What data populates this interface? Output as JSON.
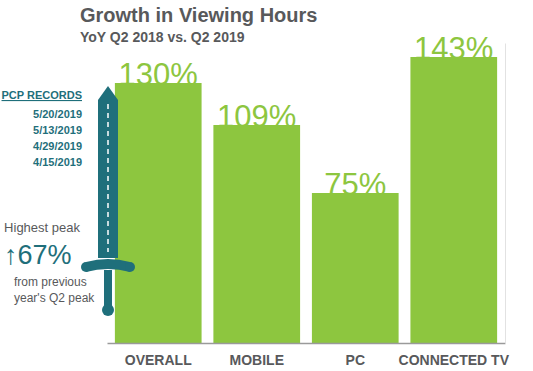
{
  "chart_data": {
    "type": "bar",
    "title": "Growth in Viewing Hours",
    "subtitle": "YoY Q2 2018 vs. Q2 2019",
    "categories": [
      "OVERALL",
      "MOBILE",
      "PC",
      "CONNECTED TV"
    ],
    "values": [
      130,
      109,
      75,
      143
    ],
    "value_labels": [
      "130%",
      "109%",
      "75%",
      "143%"
    ],
    "color": "#8dc63f",
    "ylim": [
      0,
      150
    ],
    "data_labels": true,
    "tick_labels": "x",
    "grid": false,
    "annotations": {
      "records_title": "PCP RECORDS",
      "records": [
        "5/20/2019",
        "5/13/2019",
        "4/29/2019",
        "4/15/2019"
      ],
      "peak_label": "Highest peak",
      "peak_change": "↑67%",
      "peak_note": [
        "from previous",
        "year's Q2 peak"
      ]
    }
  }
}
